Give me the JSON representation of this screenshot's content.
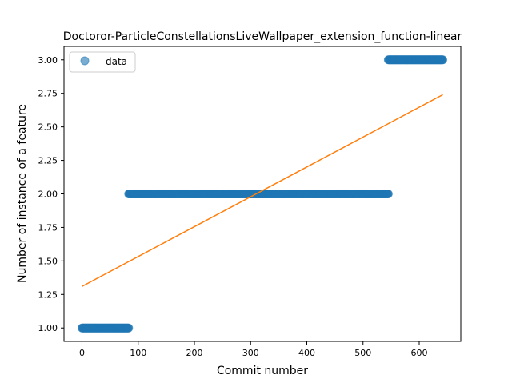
{
  "chart_data": {
    "type": "scatter",
    "title": "Doctoror-ParticleConstellationsLiveWallpaper_extension_function-linear",
    "xlabel": "Commit number",
    "ylabel": "Number of instance of a feature",
    "xlim": [
      -32,
      674
    ],
    "ylim": [
      0.9,
      3.1
    ],
    "x_ticks": [
      0,
      100,
      200,
      300,
      400,
      500,
      600
    ],
    "y_ticks": [
      1.0,
      1.25,
      1.5,
      1.75,
      2.0,
      2.25,
      2.5,
      2.75,
      3.0
    ],
    "x_tick_labels": [
      "0",
      "100",
      "200",
      "300",
      "400",
      "500",
      "600"
    ],
    "y_tick_labels": [
      "1.00",
      "1.25",
      "1.50",
      "1.75",
      "2.00",
      "2.25",
      "2.50",
      "2.75",
      "3.00"
    ],
    "grid": false,
    "legend": {
      "position": "top-left",
      "entries": [
        "data"
      ]
    },
    "series": [
      {
        "name": "data",
        "marker": "circle",
        "color": "#1f77b4",
        "segments": [
          {
            "x_start": 0,
            "x_end": 83,
            "y": 1
          },
          {
            "x_start": 83,
            "x_end": 545,
            "y": 2
          },
          {
            "x_start": 545,
            "x_end": 642,
            "y": 3
          }
        ]
      },
      {
        "name": "",
        "type": "line",
        "color": "#ff7f0e",
        "x": [
          0,
          642
        ],
        "y": [
          1.31,
          2.74
        ]
      }
    ]
  }
}
